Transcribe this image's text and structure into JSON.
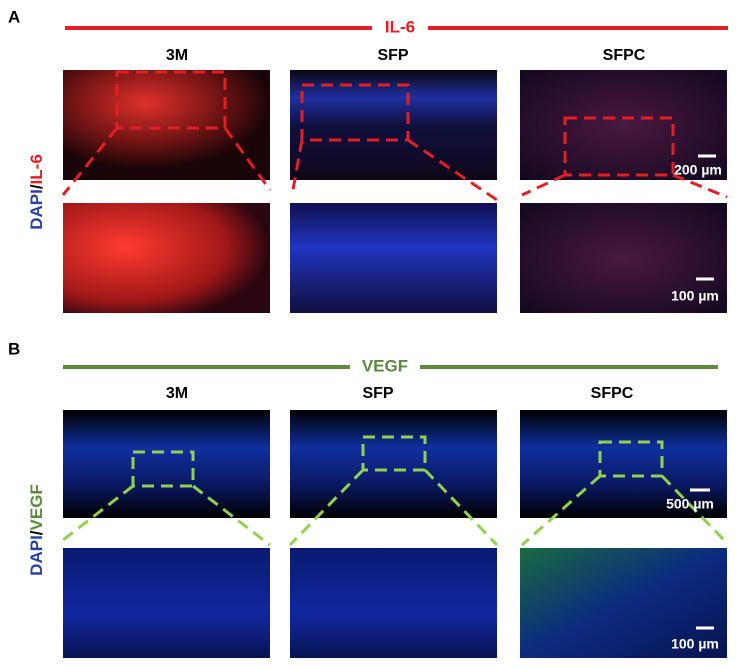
{
  "panels": [
    {
      "label": "A",
      "marker": "IL-6",
      "columns": [
        "3M",
        "SFP",
        "SFPC"
      ],
      "y_label": {
        "stain": "DAPI",
        "separator": "/",
        "marker": "IL-6"
      },
      "scale_bars": [
        "200 µm",
        "100 µm"
      ]
    },
    {
      "label": "B",
      "marker": "VEGF",
      "columns": [
        "3M",
        "SFP",
        "SFPC"
      ],
      "y_label": {
        "stain": "DAPI",
        "separator": "/",
        "marker": "VEGF"
      },
      "scale_bars": [
        "500 µm",
        "100 µm"
      ]
    }
  ]
}
